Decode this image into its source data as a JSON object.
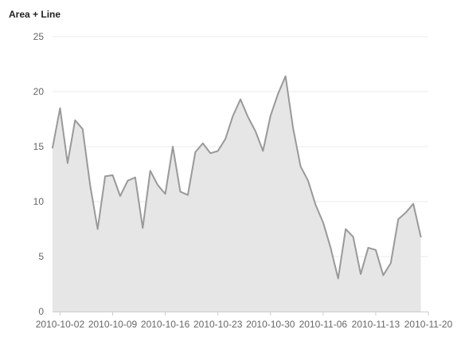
{
  "chart_data": {
    "type": "area",
    "title": "Area + Line",
    "xlabel": "",
    "ylabel": "",
    "xlim": [
      "2010-10-01",
      "2010-11-20"
    ],
    "ylim": [
      0,
      25
    ],
    "y_ticks": [
      0,
      5,
      10,
      15,
      20,
      25
    ],
    "x_ticks": [
      "2010-10-02",
      "2010-10-09",
      "2010-10-16",
      "2010-10-23",
      "2010-10-30",
      "2010-11-06",
      "2010-11-13",
      "2010-11-20"
    ],
    "grid": true,
    "legend": "none",
    "colors": {
      "line": "#999999",
      "area": "#e6e6e6",
      "grid": "#ebebeb",
      "text": "#666666"
    },
    "series": [
      {
        "x": [
          "2010-10-01",
          "2010-10-02",
          "2010-10-03",
          "2010-10-04",
          "2010-10-05",
          "2010-10-06",
          "2010-10-07",
          "2010-10-08",
          "2010-10-09",
          "2010-10-10",
          "2010-10-11",
          "2010-10-12",
          "2010-10-13",
          "2010-10-14",
          "2010-10-15",
          "2010-10-16",
          "2010-10-17",
          "2010-10-18",
          "2010-10-19",
          "2010-10-20",
          "2010-10-21",
          "2010-10-22",
          "2010-10-23",
          "2010-10-24",
          "2010-10-25",
          "2010-10-26",
          "2010-10-27",
          "2010-10-28",
          "2010-10-29",
          "2010-10-30",
          "2010-10-31",
          "2010-11-01",
          "2010-11-02",
          "2010-11-03",
          "2010-11-04",
          "2010-11-05",
          "2010-11-06",
          "2010-11-07",
          "2010-11-08",
          "2010-11-09",
          "2010-11-10",
          "2010-11-11",
          "2010-11-12",
          "2010-11-13",
          "2010-11-14",
          "2010-11-15",
          "2010-11-16",
          "2010-11-17",
          "2010-11-18",
          "2010-11-19",
          "2010-11-20"
        ],
        "values": [
          14.9,
          18.5,
          13.5,
          17.4,
          16.6,
          11.5,
          7.5,
          12.3,
          12.4,
          10.5,
          11.9,
          12.2,
          7.6,
          12.8,
          11.5,
          10.7,
          15.0,
          10.9,
          10.6,
          14.5,
          15.3,
          14.4,
          14.6,
          15.7,
          17.8,
          19.3,
          17.7,
          16.4,
          14.6,
          17.8,
          19.8,
          21.4,
          16.7,
          13.2,
          11.9,
          9.7,
          8.1,
          5.8,
          3.0,
          7.5,
          6.8,
          3.4,
          5.8,
          5.6,
          3.3,
          4.4,
          8.4,
          9.0,
          9.8,
          6.8,
          null
        ]
      }
    ]
  }
}
